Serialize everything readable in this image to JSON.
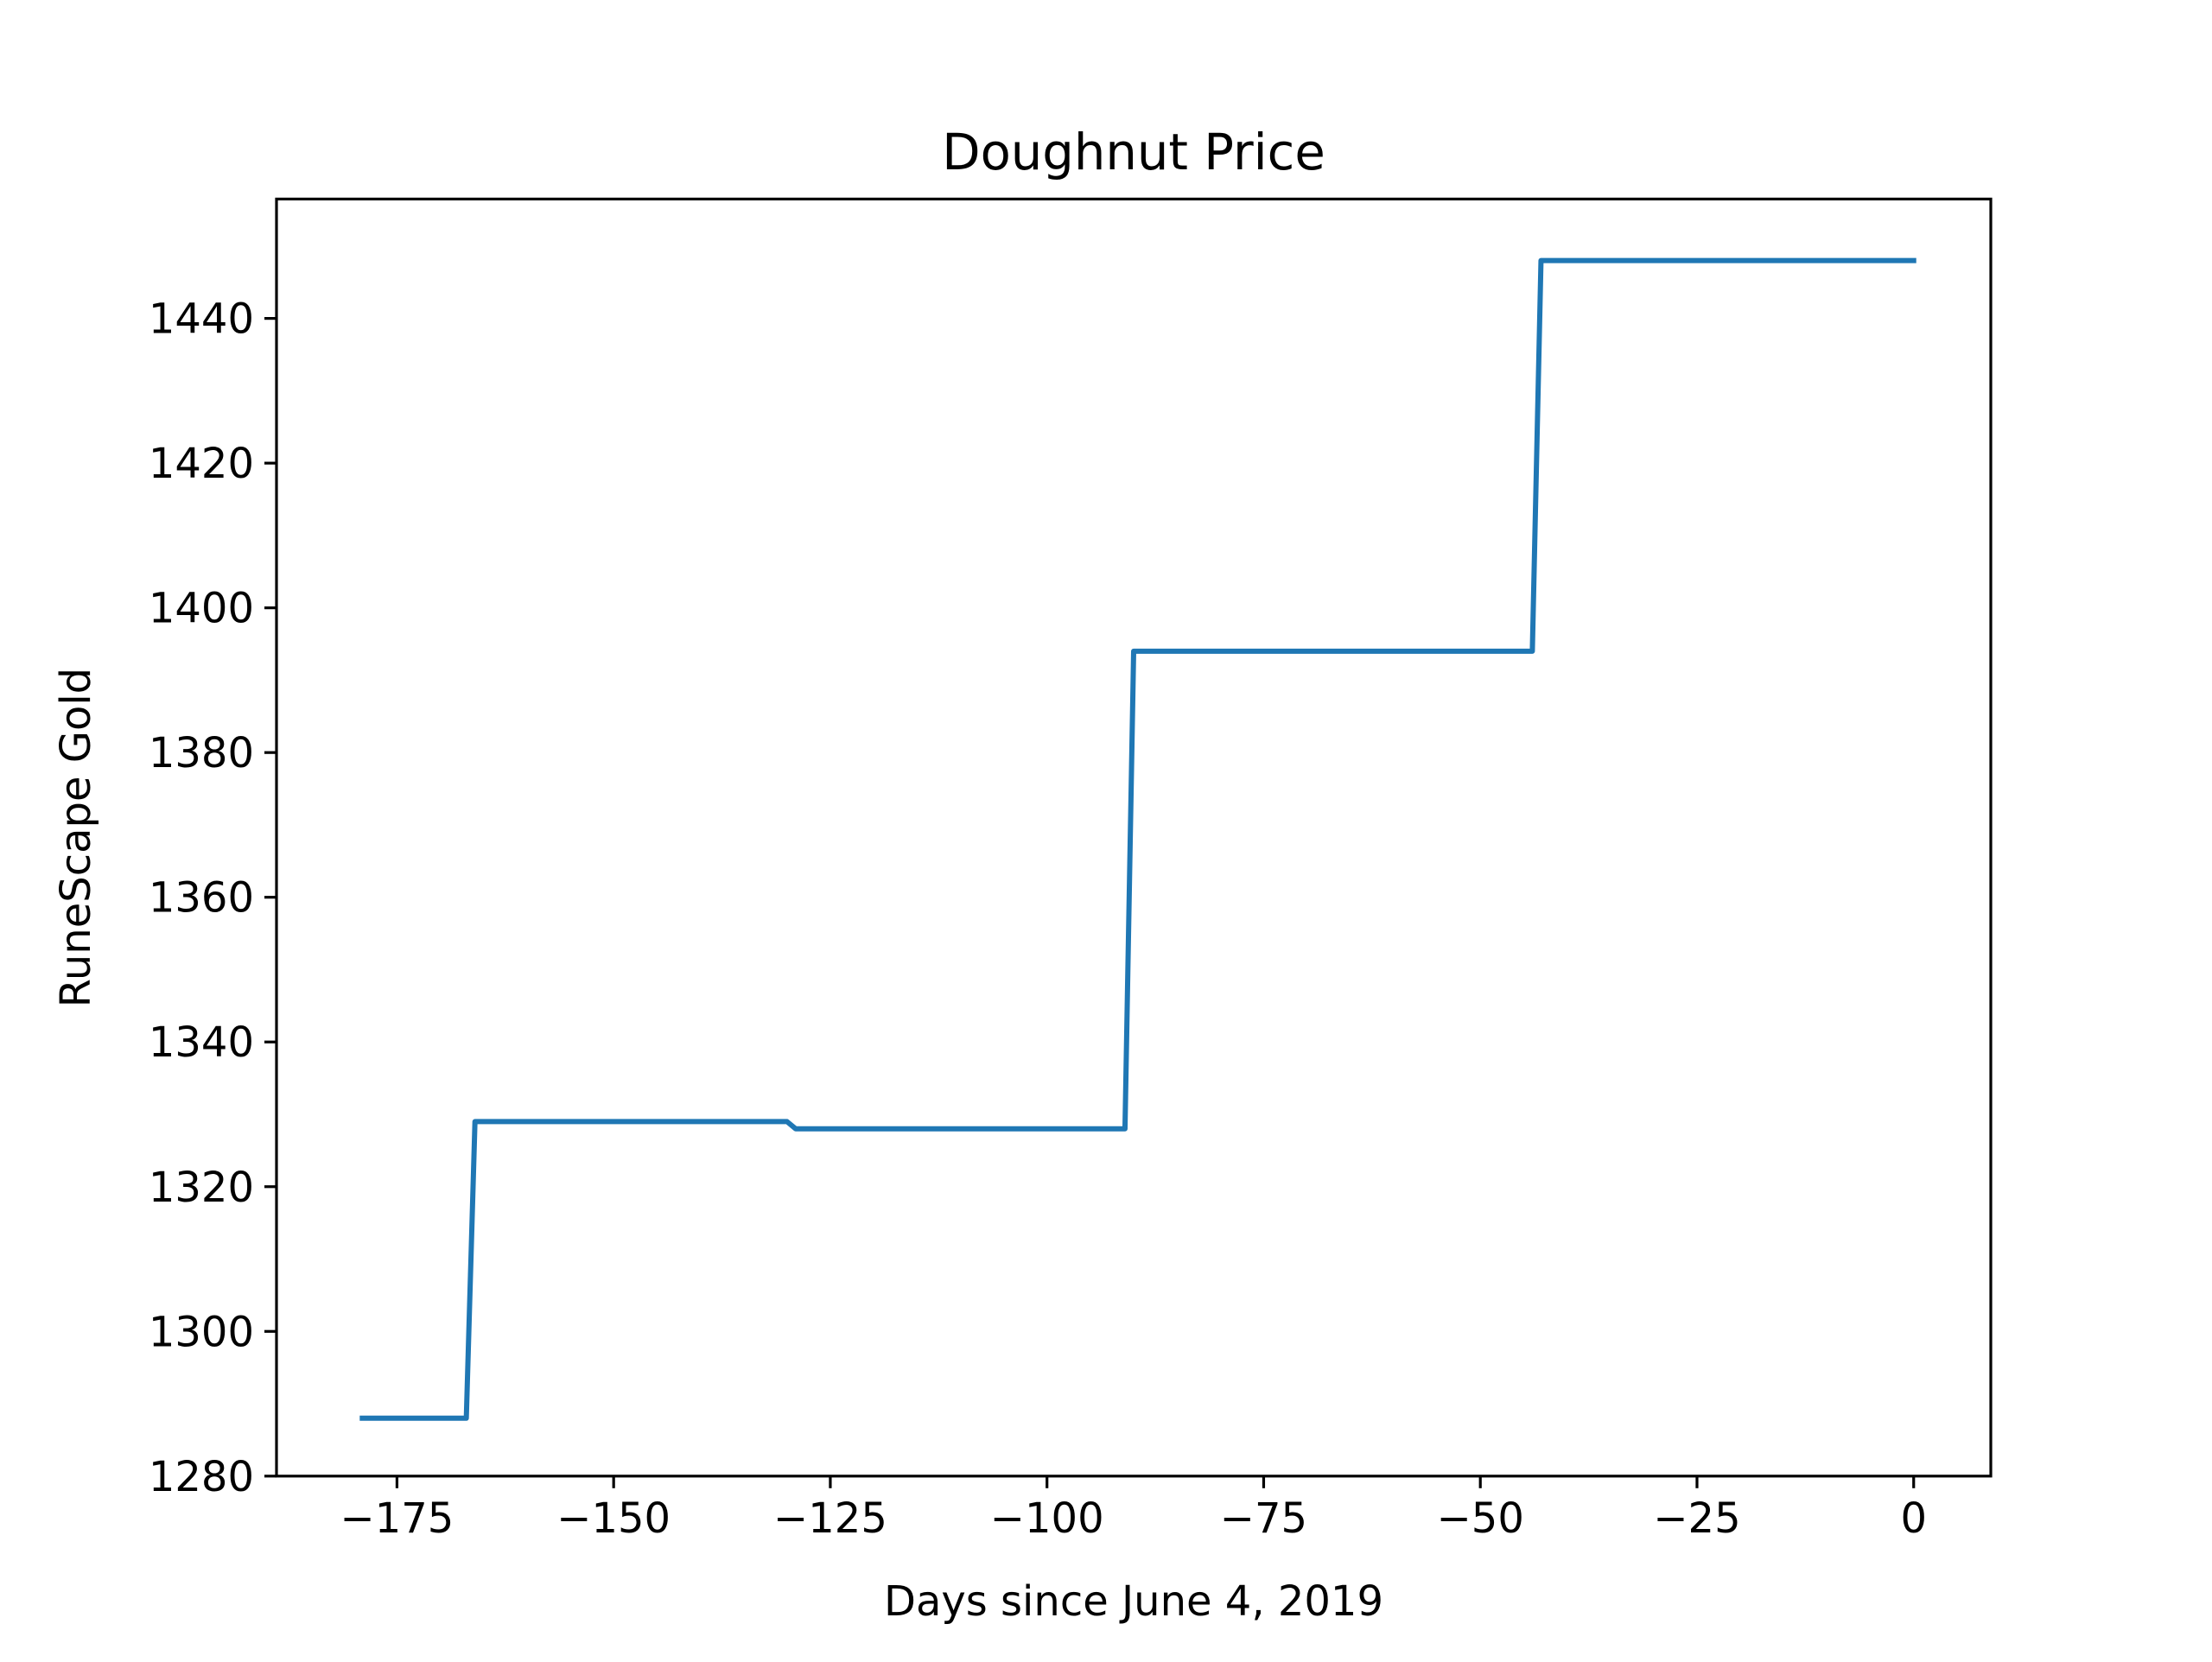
{
  "chart_data": {
    "type": "line",
    "title": "Doughnut Price",
    "xlabel": "Days since June 4, 2019",
    "ylabel": "RuneScape Gold",
    "xlim": [
      -188.9,
      8.9
    ],
    "ylim": [
      1280,
      1456.5
    ],
    "xticks": [
      -175,
      -150,
      -125,
      -100,
      -75,
      -50,
      -25,
      0
    ],
    "yticks": [
      1280,
      1300,
      1320,
      1340,
      1360,
      1380,
      1400,
      1420,
      1440
    ],
    "grid": false,
    "legend": "none",
    "series": [
      {
        "color": "#1f77b4",
        "x": [
          -179,
          -167,
          -166,
          -130,
          -129,
          -91,
          -90,
          -44,
          -43,
          0
        ],
        "y": [
          1288,
          1288,
          1329,
          1329,
          1328,
          1328,
          1394,
          1394,
          1448,
          1448
        ]
      }
    ]
  }
}
